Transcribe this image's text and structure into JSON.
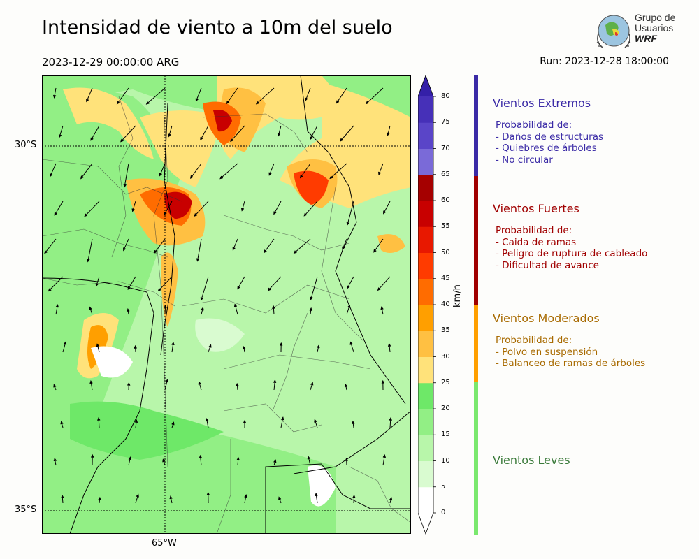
{
  "title": "Intensidad de viento a 10m del suelo",
  "valid_time": "2023-12-29 00:00:00 ARG",
  "run_time": "Run: 2023-12-28 18:00:00",
  "logo": {
    "line1": "Grupo de",
    "line2": "Usuarios",
    "line3": "WRF"
  },
  "axes": {
    "lat_labels": [
      "30°S",
      "35°S"
    ],
    "lon_labels": [
      "65°W"
    ]
  },
  "colorbar": {
    "unit": "km/h",
    "ticks": [
      "0",
      "5",
      "10",
      "15",
      "20",
      "25",
      "30",
      "35",
      "40",
      "45",
      "50",
      "55",
      "60",
      "65",
      "70",
      "75",
      "80"
    ],
    "colors": [
      "#ffffff",
      "#d9fbd0",
      "#b8f6aa",
      "#92ef85",
      "#6ee868",
      "#ffe27a",
      "#ffc042",
      "#ff9f00",
      "#ff6c00",
      "#ff3b00",
      "#e81800",
      "#c80000",
      "#a50000",
      "#7a6ad8",
      "#5a45c8",
      "#4630b8",
      "#3420a8"
    ]
  },
  "categories": [
    {
      "title": "Vientos Extremos",
      "color": "#3a2aa6",
      "lines": [
        "Probabilidad de:",
        "- Daños de estructuras",
        "- Quiebres de árboles",
        "- No circular"
      ]
    },
    {
      "title": "Vientos Fuertes",
      "color": "#a00000",
      "lines": [
        "Probabilidad de:",
        "- Caida de ramas",
        "- Peligro de ruptura de cableado",
        "- Dificultad de avance"
      ]
    },
    {
      "title": "Vientos Moderados",
      "color": "#a86a00",
      "lines": [
        "Probabilidad de:",
        "- Polvo en suspensión",
        "- Balanceo de ramas de árboles"
      ]
    },
    {
      "title": "Vientos Leves",
      "color": "#3a7a3a",
      "lines": []
    }
  ],
  "bar_colors": [
    "#3a2aa6",
    "#a00000",
    "#ff9f00",
    "#7ae86e"
  ]
}
